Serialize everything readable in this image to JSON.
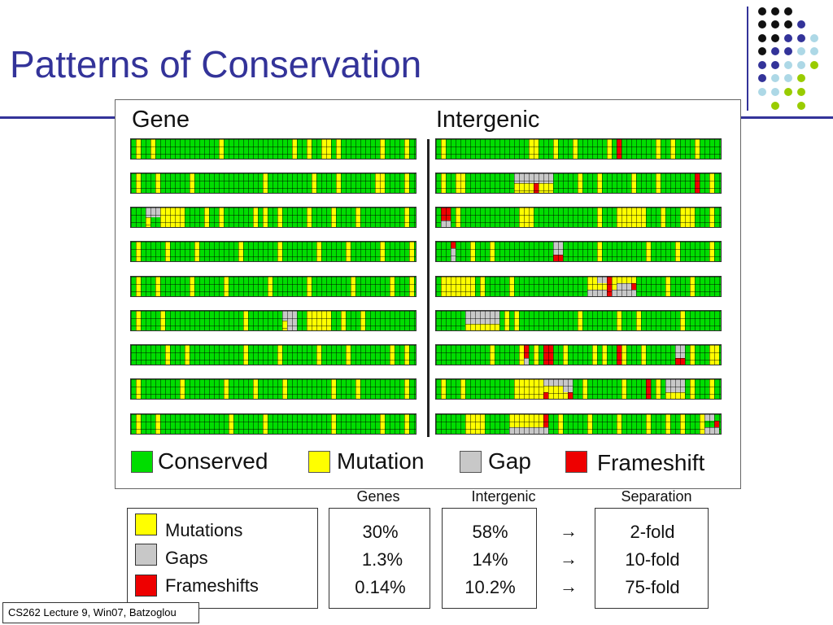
{
  "slide": {
    "title": "Patterns of Conservation",
    "footer": "CS262 Lecture 9, Win07, Batzoglou"
  },
  "figure": {
    "gene_heading": "Gene",
    "intergenic_heading": "Intergenic",
    "legend": [
      {
        "label": "Conserved",
        "color": "#00dd00"
      },
      {
        "label": "Mutation",
        "color": "#ffff00"
      },
      {
        "label": "Gap",
        "color": "#c8c8c8"
      },
      {
        "label": "Frameshift",
        "color": "#ee0000"
      }
    ]
  },
  "table": {
    "headers": {
      "genes": "Genes",
      "intergenic": "Intergenic",
      "separation": "Separation"
    },
    "key": [
      {
        "label": "Mutations",
        "color": "#ffff00"
      },
      {
        "label": "Gaps",
        "color": "#c8c8c8"
      },
      {
        "label": "Frameshifts",
        "color": "#ee0000"
      }
    ],
    "genes": [
      "30%",
      "1.3%",
      "0.14%"
    ],
    "intergenic": [
      "58%",
      "14%",
      "10.2%"
    ],
    "arrow": "→",
    "separation": [
      "2-fold",
      "10-fold",
      "75-fold"
    ]
  },
  "colors": {
    "accent": "#333399",
    "dot_black": "#111111",
    "dot_navy": "#333399",
    "dot_lightblue": "#add8e6",
    "dot_green": "#99cc00"
  }
}
